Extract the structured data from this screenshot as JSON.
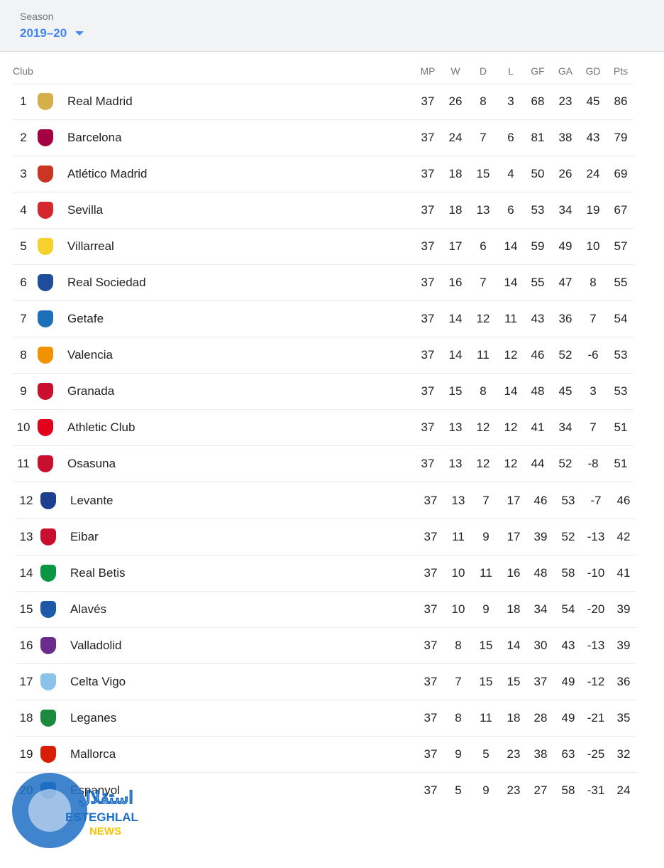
{
  "season": {
    "label": "Season",
    "value": "2019–20"
  },
  "table": {
    "headers": [
      "Club",
      "MP",
      "W",
      "D",
      "L",
      "GF",
      "GA",
      "GD",
      "Pts"
    ],
    "rows": [
      [
        1,
        "Real Madrid",
        37,
        26,
        8,
        3,
        68,
        23,
        45,
        86
      ],
      [
        2,
        "Barcelona",
        37,
        24,
        7,
        6,
        81,
        38,
        43,
        79
      ],
      [
        3,
        "Atlético Madrid",
        37,
        18,
        15,
        4,
        50,
        26,
        24,
        69
      ],
      [
        4,
        "Sevilla",
        37,
        18,
        13,
        6,
        53,
        34,
        19,
        67
      ],
      [
        5,
        "Villarreal",
        37,
        17,
        6,
        14,
        59,
        49,
        10,
        57
      ],
      [
        6,
        "Real Sociedad",
        37,
        16,
        7,
        14,
        55,
        47,
        8,
        55
      ],
      [
        7,
        "Getafe",
        37,
        14,
        12,
        11,
        43,
        36,
        7,
        54
      ],
      [
        8,
        "Valencia",
        37,
        14,
        11,
        12,
        46,
        52,
        -6,
        53
      ],
      [
        9,
        "Granada",
        37,
        15,
        8,
        14,
        48,
        45,
        3,
        53
      ],
      [
        10,
        "Athletic Club",
        37,
        13,
        12,
        12,
        41,
        34,
        7,
        51
      ],
      [
        11,
        "Osasuna",
        37,
        13,
        12,
        12,
        44,
        52,
        -8,
        51
      ],
      [
        12,
        "Levante",
        37,
        13,
        7,
        17,
        46,
        53,
        -7,
        46
      ],
      [
        13,
        "Eibar",
        37,
        11,
        9,
        17,
        39,
        52,
        -13,
        42
      ],
      [
        14,
        "Real Betis",
        37,
        10,
        11,
        16,
        48,
        58,
        -10,
        41
      ],
      [
        15,
        "Alavés",
        37,
        10,
        9,
        18,
        34,
        54,
        -20,
        39
      ],
      [
        16,
        "Valladolid",
        37,
        8,
        15,
        14,
        30,
        43,
        -13,
        39
      ],
      [
        17,
        "Celta Vigo",
        37,
        7,
        15,
        15,
        37,
        49,
        -12,
        36
      ],
      [
        18,
        "Leganes",
        37,
        8,
        11,
        18,
        28,
        49,
        -21,
        35
      ],
      [
        19,
        "Mallorca",
        37,
        9,
        5,
        23,
        38,
        63,
        -25,
        32
      ],
      [
        20,
        "Espanyol",
        37,
        5,
        9,
        23,
        27,
        58,
        -31,
        24
      ]
    ]
  },
  "watermark": {
    "arabic": "استقلال",
    "name": "ESTEGHLAL",
    "sub": "NEWS"
  }
}
